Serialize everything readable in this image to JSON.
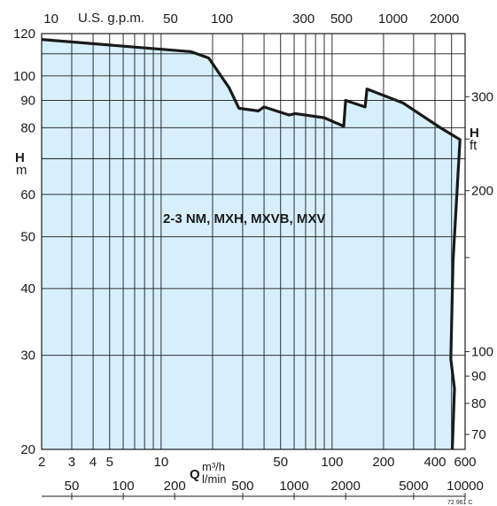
{
  "chart_data": {
    "type": "area",
    "title": "2-3 NM, MXH, MXVB, MXV",
    "fill_color": "#d6effa",
    "line_color": "#1a1a1a",
    "grid": true,
    "x_scale": "log",
    "y_scale": "log",
    "xlim": [
      2,
      600
    ],
    "ylim": [
      20,
      120
    ],
    "x_axis_bottom": {
      "label": "Q",
      "unit": "m³/h",
      "ticks": [
        "2",
        "3",
        "4",
        "5",
        "10",
        "50",
        "100",
        "200",
        "400",
        "600"
      ]
    },
    "x_axis_bottom2": {
      "unit": "l/min",
      "ticks": [
        "50",
        "100",
        "200",
        "500",
        "1000",
        "2000",
        "5000",
        "10000"
      ]
    },
    "x_axis_top": {
      "unit": "U.S. g.p.m.",
      "ticks": [
        "10",
        "50",
        "100",
        "300",
        "500",
        "1000",
        "2000"
      ]
    },
    "y_axis_left": {
      "label": "H",
      "unit": "m",
      "ticks": [
        "120",
        "100",
        "90",
        "80",
        "60",
        "50",
        "40",
        "30",
        "20"
      ]
    },
    "y_axis_right": {
      "label": "H",
      "unit": "ft",
      "ticks": [
        "300",
        "200",
        "100",
        "90",
        "80",
        "70"
      ]
    },
    "envelope": [
      {
        "x": 2,
        "y": 117
      },
      {
        "x": 15,
        "y": 111
      },
      {
        "x": 19,
        "y": 108
      },
      {
        "x": 25,
        "y": 95
      },
      {
        "x": 28.5,
        "y": 87
      },
      {
        "x": 37,
        "y": 86
      },
      {
        "x": 40,
        "y": 87.5
      },
      {
        "x": 56,
        "y": 84.5
      },
      {
        "x": 61,
        "y": 85
      },
      {
        "x": 90,
        "y": 83.5
      },
      {
        "x": 117,
        "y": 80.5
      },
      {
        "x": 120,
        "y": 90
      },
      {
        "x": 156,
        "y": 87.5
      },
      {
        "x": 160,
        "y": 94.5
      },
      {
        "x": 260,
        "y": 89
      },
      {
        "x": 430,
        "y": 80
      },
      {
        "x": 560,
        "y": 76
      },
      {
        "x": 510,
        "y": 45
      },
      {
        "x": 495,
        "y": 29.5
      },
      {
        "x": 520,
        "y": 26
      },
      {
        "x": 505,
        "y": 20
      }
    ],
    "footnote": "72 961 C"
  }
}
